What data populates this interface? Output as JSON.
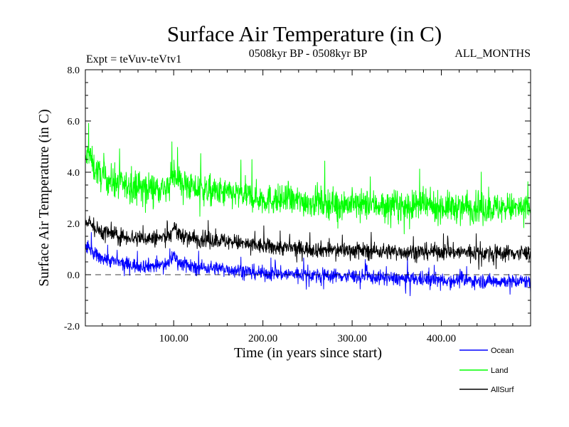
{
  "chart_data": {
    "type": "line",
    "title": "Surface Air Temperature (in C)",
    "subtitle_left": "Expt = teVuv-teVtv1",
    "subtitle_center": "0508kyr BP - 0508kyr BP",
    "subtitle_right": "ALL_MONTHS",
    "xlabel": "Time (in years since start)",
    "ylabel": "Surface Air Temperature (in C)",
    "xlim": [
      1,
      500
    ],
    "ylim": [
      -2.0,
      8.0
    ],
    "x_ticks": [
      100,
      200,
      300,
      400
    ],
    "x_tick_labels": [
      "100.00",
      "200.00",
      "300.00",
      "400.00"
    ],
    "y_ticks": [
      -2,
      0,
      2,
      4,
      6,
      8
    ],
    "y_tick_labels": [
      "-2.0",
      "0.0",
      "2.0",
      "4.0",
      "6.0",
      "8.0"
    ],
    "zero_line": {
      "y": 0.0,
      "style": "dashed"
    },
    "legend_placement": "bottom-right",
    "series": [
      {
        "name": "Ocean",
        "color": "#0000ff",
        "x": [
          1,
          5,
          10,
          20,
          40,
          60,
          80,
          95,
          100,
          105,
          120,
          150,
          180,
          200,
          250,
          300,
          350,
          400,
          450,
          500
        ],
        "values": [
          1.0,
          1.1,
          0.8,
          0.65,
          0.45,
          0.35,
          0.35,
          0.45,
          0.8,
          0.5,
          0.3,
          0.25,
          0.15,
          0.05,
          0.0,
          -0.05,
          -0.15,
          -0.2,
          -0.25,
          -0.25
        ],
        "spread": 0.35
      },
      {
        "name": "Land",
        "color": "#00ff00",
        "x": [
          1,
          5,
          10,
          20,
          40,
          60,
          80,
          95,
          100,
          105,
          120,
          150,
          180,
          200,
          250,
          300,
          350,
          400,
          450,
          500
        ],
        "values": [
          4.4,
          4.8,
          4.2,
          3.8,
          3.5,
          3.45,
          3.4,
          3.4,
          4.1,
          3.7,
          3.4,
          3.2,
          3.1,
          2.95,
          2.85,
          2.75,
          2.7,
          2.65,
          2.6,
          2.6
        ],
        "spread": 0.75
      },
      {
        "name": "AllSurf",
        "color": "#000000",
        "x": [
          1,
          5,
          10,
          20,
          40,
          60,
          80,
          95,
          100,
          105,
          120,
          150,
          180,
          200,
          250,
          300,
          350,
          400,
          450,
          500
        ],
        "values": [
          2.0,
          2.2,
          1.8,
          1.7,
          1.5,
          1.45,
          1.4,
          1.5,
          1.9,
          1.6,
          1.4,
          1.35,
          1.2,
          1.1,
          1.0,
          0.95,
          0.9,
          0.9,
          0.85,
          0.85
        ],
        "spread": 0.4
      }
    ]
  }
}
